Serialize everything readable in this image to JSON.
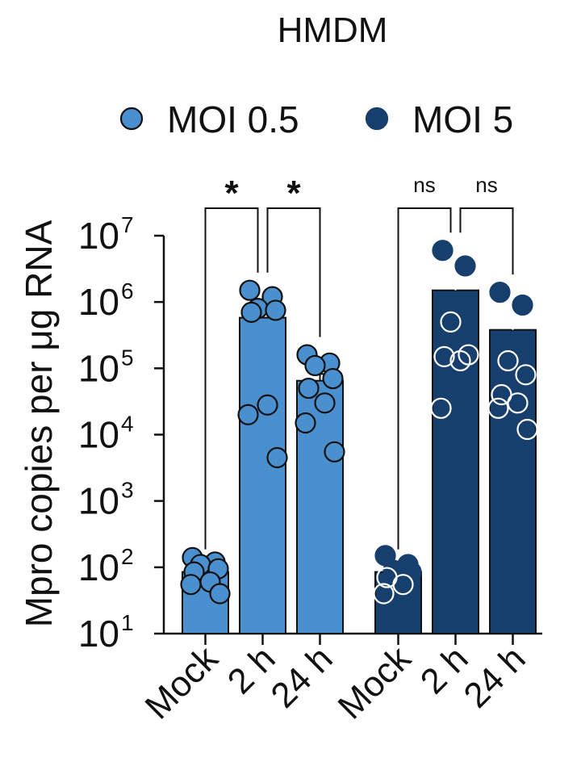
{
  "chart_data": {
    "type": "bar",
    "title": "HMDM",
    "ylabel": "Mpro copies per μg RNA",
    "xlabel": "",
    "yscale": "log",
    "ylim": [
      10,
      10000000
    ],
    "yticks": [
      {
        "value": 10,
        "base": "10",
        "exp": "1"
      },
      {
        "value": 100,
        "base": "10",
        "exp": "2"
      },
      {
        "value": 1000,
        "base": "10",
        "exp": "3"
      },
      {
        "value": 10000,
        "base": "10",
        "exp": "4"
      },
      {
        "value": 100000,
        "base": "10",
        "exp": "5"
      },
      {
        "value": 1000000,
        "base": "10",
        "exp": "6"
      },
      {
        "value": 10000000,
        "base": "10",
        "exp": "7"
      }
    ],
    "legend_position": "top",
    "series": [
      {
        "name": "MOI 0.5",
        "color": "#4a90cf",
        "categories": [
          "Mock",
          "2 h",
          "24 h"
        ],
        "values": [
          85,
          580000,
          65000
        ],
        "errors": [
          8,
          230000,
          17000
        ],
        "points": [
          [
            140,
            120,
            110,
            95,
            85,
            60,
            55,
            40
          ],
          [
            1500000,
            1200000,
            800000,
            750000,
            700000,
            28000,
            20000,
            4500
          ],
          [
            160000,
            120000,
            110000,
            70000,
            50000,
            30000,
            15000,
            5500
          ]
        ]
      },
      {
        "name": "MOI 5",
        "color": "#173f6e",
        "categories": [
          "Mock",
          "2 h",
          "24 h"
        ],
        "values": [
          85,
          1500000,
          380000
        ],
        "errors": [
          10,
          1400000,
          230000
        ],
        "points": [
          [
            150,
            110,
            90,
            85,
            70,
            55,
            40
          ],
          [
            6000000,
            3500000,
            500000,
            160000,
            150000,
            130000,
            25000
          ],
          [
            1400000,
            900000,
            130000,
            80000,
            40000,
            30000,
            25000,
            12000
          ]
        ]
      }
    ],
    "comparisons": [
      {
        "series": 0,
        "from": 0,
        "to": 1,
        "label": "*"
      },
      {
        "series": 0,
        "from": 1,
        "to": 2,
        "label": "*"
      },
      {
        "series": 1,
        "from": 0,
        "to": 1,
        "label": "ns"
      },
      {
        "series": 1,
        "from": 1,
        "to": 2,
        "label": "ns"
      }
    ]
  }
}
